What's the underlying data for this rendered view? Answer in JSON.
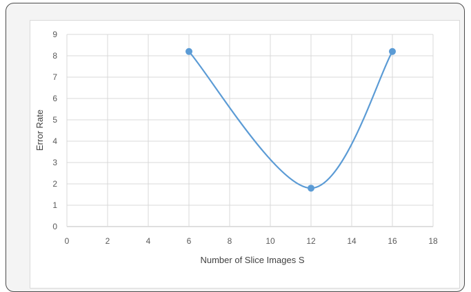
{
  "chart_data": {
    "type": "line",
    "title": "",
    "xlabel": "Number of Slice Images S",
    "ylabel": "Error Rate",
    "xlim": [
      0,
      18
    ],
    "ylim": [
      0,
      9
    ],
    "xticks": [
      0,
      2,
      4,
      6,
      8,
      10,
      12,
      14,
      16,
      18
    ],
    "yticks": [
      0,
      1,
      2,
      3,
      4,
      5,
      6,
      7,
      8,
      9
    ],
    "grid": true,
    "smooth": true,
    "series": [
      {
        "x": [
          6,
          12,
          16
        ],
        "values": [
          8.2,
          1.8,
          8.2
        ],
        "color": "#5b9bd5"
      }
    ]
  }
}
